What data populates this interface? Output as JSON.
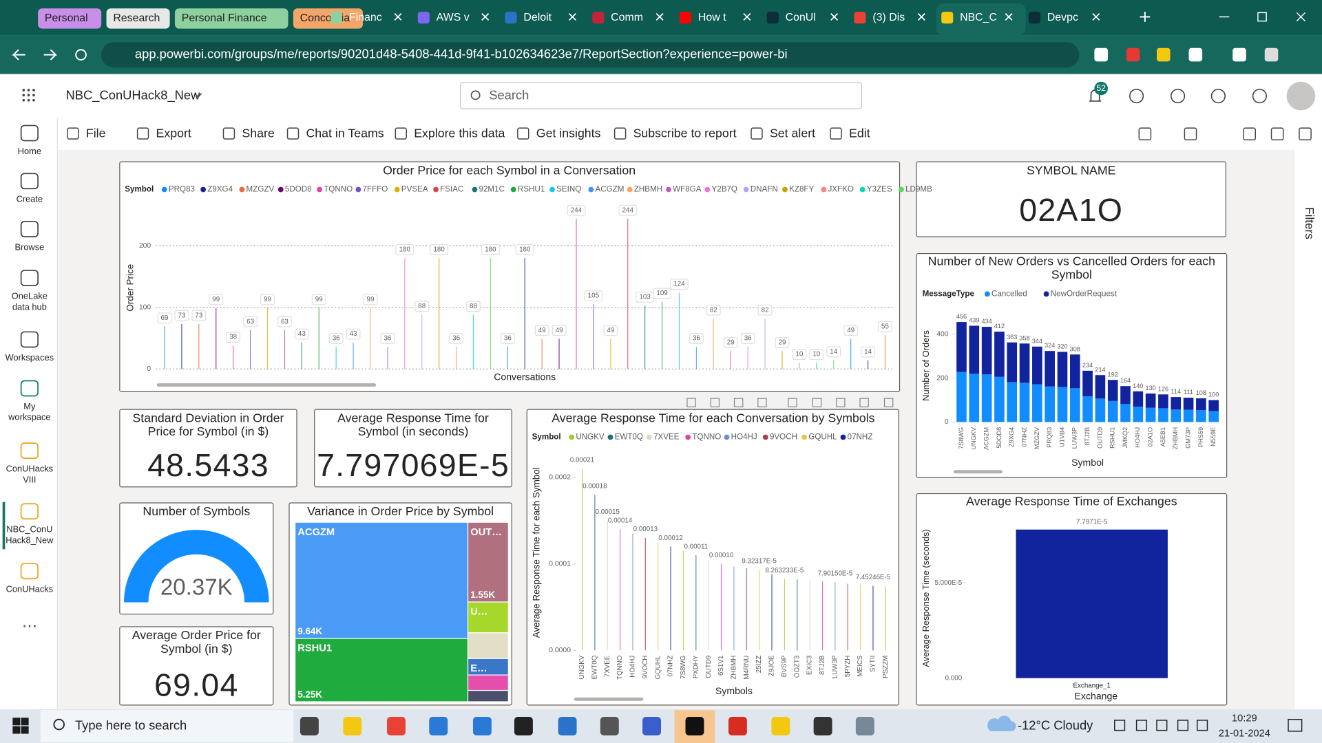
{
  "browser": {
    "tab_groups": [
      "Personal",
      "Research",
      "Personal Finance",
      "Concordia"
    ],
    "tabs": [
      "Financ",
      "AWS v",
      "Deloit",
      "Comm",
      "How t",
      "ConUl",
      "(3) Dis",
      "NBC_C",
      "Devpc"
    ],
    "url": "app.powerbi.com/groups/me/reports/90201d48-5408-441d-9f41-b102634623e7/ReportSection?experience=power-bi"
  },
  "app": {
    "report_name": "NBC_ConUHack8_New",
    "search": "Search",
    "notifications": "52",
    "nav": [
      [
        "Home"
      ],
      [
        "Create"
      ],
      [
        "Browse"
      ],
      [
        "OneLake",
        "data hub"
      ],
      [
        "Workspaces"
      ],
      [
        "My",
        "workspace"
      ],
      [
        "ConUHacks",
        "VIII"
      ],
      [
        "NBC_ConU",
        "Hack8_New"
      ],
      [
        "ConUHacks"
      ]
    ],
    "toolbar": [
      "File",
      "Export",
      "Share",
      "Chat in Teams",
      "Explore this data",
      "Get insights",
      "Subscribe to report",
      "Set alert",
      "Edit"
    ],
    "filters": "Filters"
  },
  "report": {
    "symbol_card": {
      "title": [
        "SYMBOL NAME"
      ],
      "value": "02A1O"
    },
    "std_card": {
      "title": [
        "Standard Deviation in Order",
        "Price for Symbol (in $)"
      ],
      "value": "48.5433"
    },
    "resp_card": {
      "title": [
        "Average Response Time for",
        "Symbol (in seconds)"
      ],
      "value": "7.797069E-5"
    },
    "price_card": {
      "title": [
        "Average Order Price for",
        "Symbol (in $)"
      ],
      "value": "69.04"
    },
    "gauge": {
      "type": "gauge",
      "title": "Number of Symbols",
      "value": 20370,
      "value_label": "20.37K",
      "color": "#118DFF"
    },
    "order_price": {
      "type": "lollipop",
      "title": "Order Price for each Symbol in a Conversation",
      "legend_title": "Symbol",
      "legend": [
        {
          "name": "PRQ83",
          "color": "#118DFF"
        },
        {
          "name": "Z9XG4",
          "color": "#12239E"
        },
        {
          "name": "MZGZV",
          "color": "#E66C37"
        },
        {
          "name": "5DOD8",
          "color": "#6B007B"
        },
        {
          "name": "TQNNO",
          "color": "#E044A7"
        },
        {
          "name": "7FFFO",
          "color": "#744EC2"
        },
        {
          "name": "PVSEA",
          "color": "#D9B300"
        },
        {
          "name": "FSIAC",
          "color": "#D64550"
        },
        {
          "name": "92M1C",
          "color": "#197278"
        },
        {
          "name": "RSHU1",
          "color": "#1AAB40"
        },
        {
          "name": "SEINQ",
          "color": "#15C6F4"
        },
        {
          "name": "ACGZM",
          "color": "#4092FF"
        },
        {
          "name": "ZHBMH",
          "color": "#FFA058"
        },
        {
          "name": "WF8GA",
          "color": "#BE5DC9"
        },
        {
          "name": "Y2B7Q",
          "color": "#F472D0"
        },
        {
          "name": "DNAFN",
          "color": "#B5A1FF"
        },
        {
          "name": "KZ8FY",
          "color": "#C4A200"
        },
        {
          "name": "JXFKO",
          "color": "#FF8080"
        },
        {
          "name": "Y3ZES",
          "color": "#00DBBC"
        },
        {
          "name": "LD9MB",
          "color": "#5BD667"
        }
      ],
      "y_label": "Order Price",
      "x_label": "Conversations",
      "values": [
        69,
        73,
        73,
        99,
        38,
        63,
        99,
        63,
        43,
        99,
        36,
        43,
        99,
        36,
        180,
        88,
        180,
        36,
        88,
        180,
        36,
        180,
        49,
        49,
        244,
        105,
        49,
        244,
        103,
        109,
        124,
        36,
        82,
        29,
        36,
        82,
        29,
        10,
        10,
        14,
        49,
        14,
        55
      ],
      "ylim": [
        0,
        264
      ],
      "yticks": [
        0,
        100,
        200
      ],
      "grid": true
    },
    "orders": {
      "type": "stacked_bar",
      "title": [
        "Number of New Orders vs Cancelled Orders for each",
        "Symbol"
      ],
      "legend_title": "MessageType",
      "y_label": "Number of Orders",
      "x_label": "Symbol",
      "categories": [
        "7S8WG",
        "UNGKV",
        "ACGZM",
        "5DOD8",
        "Z9XG4",
        "07NHZ",
        "MZGZV",
        "PRQ83",
        "U1VB4",
        "LUW3P",
        "8TJ2B",
        "OUTD9",
        "RSHU1",
        "JMKQ2",
        "HO4HJ",
        "02A1O",
        "A5EB1",
        "ZHBMH",
        "GM73P",
        "PHS59",
        "N559E"
      ],
      "series": [
        {
          "name": "Cancelled",
          "color": "#118DFF",
          "values": [
            228,
            220,
            217,
            206,
            182,
            179,
            172,
            162,
            160,
            154,
            117,
            107,
            96,
            82,
            70,
            65,
            63,
            57,
            56,
            54,
            50
          ]
        },
        {
          "name": "NewOrderRequest",
          "color": "#12239E",
          "values": [
            228,
            219,
            217,
            206,
            181,
            179,
            172,
            162,
            160,
            154,
            117,
            107,
            96,
            82,
            70,
            65,
            63,
            57,
            55,
            54,
            50
          ]
        }
      ],
      "totals": [
        456,
        439,
        434,
        412,
        363,
        358,
        344,
        324,
        320,
        308,
        234,
        214,
        192,
        164,
        140,
        130,
        126,
        114,
        111,
        108,
        100
      ],
      "ylim": [
        0,
        480
      ],
      "yticks": [
        0,
        200,
        400
      ]
    },
    "response": {
      "type": "lollipop",
      "title": "Average Response Time for each Conversation by Symbols",
      "legend_title": "Symbol",
      "legend": [
        {
          "name": "UNGKV",
          "color": "#9ACD32"
        },
        {
          "name": "EWT0Q",
          "color": "#197278"
        },
        {
          "name": "7XVEE",
          "color": "#E0D5C0"
        },
        {
          "name": "TQNNO",
          "color": "#E044A7"
        },
        {
          "name": "HO4HJ",
          "color": "#6B8FD6"
        },
        {
          "name": "9VOCH",
          "color": "#B33A4A"
        },
        {
          "name": "GQUHL",
          "color": "#E8C547"
        },
        {
          "name": "07NHZ",
          "color": "#12239E"
        }
      ],
      "y_label": "Average Response Time for each Symbol",
      "x_label": "Symbols",
      "categories": [
        "UNGKV",
        "EWT0Q",
        "7XVEE",
        "TQNNO",
        "HO4HJ",
        "9VOCH",
        "GQUHL",
        "07NHZ",
        "7S8WG",
        "PXDHY",
        "OUTD9",
        "6S1V1",
        "ZHBMH",
        "M4RNU",
        "25IZZ",
        "Z9JOE",
        "BVS9P",
        "OOZT3",
        "EXIC3",
        "8TJ2B",
        "LUW3P",
        "5PYZH",
        "MEICS",
        "SYTII",
        "PSZZM"
      ],
      "values": [
        0.00021,
        0.00018,
        0.00015,
        0.00014,
        0.000135,
        0.00013,
        0.000125,
        0.00012,
        0.000115,
        0.00011,
        0.000105,
        0.0001,
        9.7e-05,
        9.5e-05,
        9.32317e-05,
        8.8e-05,
        8.263233e-05,
        8.2e-05,
        8.1e-05,
        8e-05,
        7.9015e-05,
        7.7e-05,
        7.6e-05,
        7.45246e-05,
        7.4e-05
      ],
      "value_labels": [
        "0.00021",
        "0.00018",
        "0.00015",
        "0.00014",
        null,
        "0.00013",
        null,
        "0.00012",
        null,
        "0.00011",
        null,
        "0.00010",
        null,
        null,
        "9.32317E-5",
        null,
        "8.263233E-5",
        null,
        null,
        null,
        "7.90150E-5",
        null,
        null,
        "7.45246E-5",
        null
      ],
      "ylim": [
        0,
        0.000226
      ],
      "yticks": [
        {
          "value": 0,
          "label": "0.0000"
        },
        {
          "value": 0.0001,
          "label": "0.0001"
        },
        {
          "value": 0.0002,
          "label": "0.0002"
        }
      ]
    },
    "treemap": {
      "type": "treemap",
      "title": "Variance in Order Price by Symbol",
      "items": [
        {
          "name": "ACGZM",
          "value": 9640,
          "value_label": "9.64K",
          "color": "#4A9BF5"
        },
        {
          "name": "RSHU1",
          "value": 5250,
          "value_label": "5.25K",
          "color": "#1FAB3D"
        },
        {
          "name": "OUT…",
          "value": 1550,
          "value_label": "1.55K",
          "color": "#B0707F"
        },
        {
          "name": "U…",
          "value": 600,
          "color": "#A5D82A"
        },
        {
          "value": 500,
          "color": "#E2DFC6"
        },
        {
          "name": "E…",
          "value": 320,
          "color": "#3C76C8"
        },
        {
          "value": 300,
          "color": "#E44FAE"
        },
        {
          "value": 220,
          "color": "#4B4F6B"
        }
      ]
    },
    "exchange": {
      "type": "bar",
      "title": "Average Response Time of Exchanges",
      "categories": [
        "Exchange_1"
      ],
      "values": [
        7.7971e-05
      ],
      "value_labels": [
        "7.7971E-5"
      ],
      "color": "#12239E",
      "y_label": "Average Response Time (seconds)",
      "x_label": "Exchange",
      "ylim": [
        0,
        8.4e-05
      ],
      "yticks": [
        {
          "value": 0,
          "label": "0.000"
        },
        {
          "value": 5e-05,
          "label": "5.000E-5"
        }
      ]
    }
  },
  "taskbar": {
    "search": "Type here to search",
    "weather": "-12°C Cloudy",
    "time": "10:29",
    "date": "21-01-2024"
  }
}
